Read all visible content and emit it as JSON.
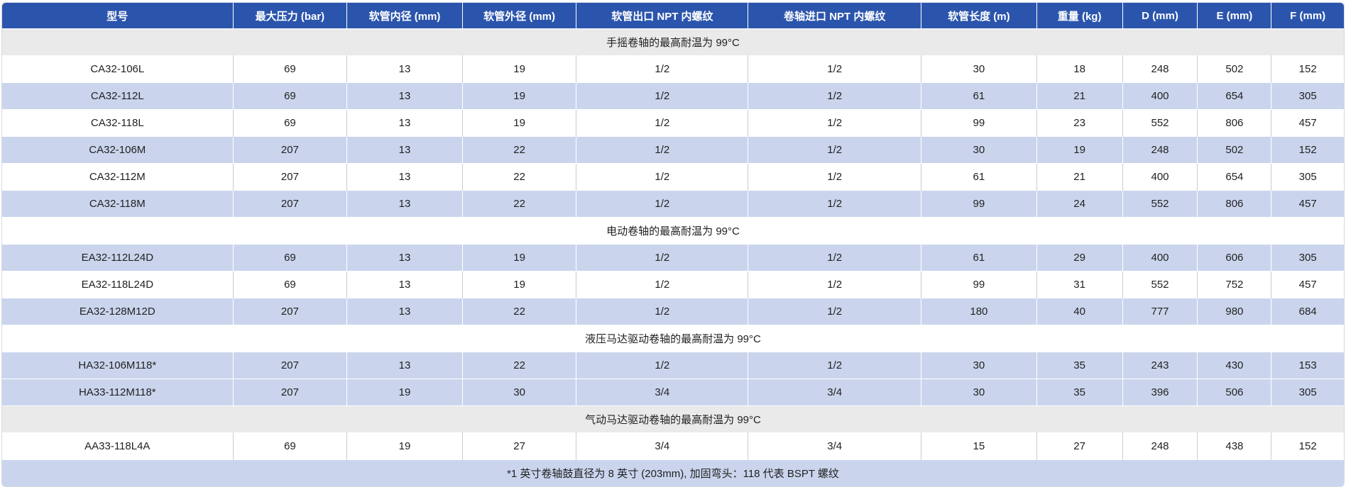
{
  "colors": {
    "header_bg": "#2b55ad",
    "header_text": "#ffffff",
    "stripe_blue": "#cad5ed",
    "section_gray": "#eaeaea",
    "row_white": "#ffffff",
    "body_text": "#222222"
  },
  "table": {
    "headers": [
      "型号",
      "最大压力 (bar)",
      "软管内径 (mm)",
      "软管外径 (mm)",
      "软管出口 NPT 内螺纹",
      "卷轴进口 NPT 内螺纹",
      "软管长度 (m)",
      "重量 (kg)",
      "D (mm)",
      "E (mm)",
      "F (mm)"
    ],
    "sections": [
      {
        "title": "手摇卷轴的最高耐温为 99°C",
        "shade": "gray",
        "rows": [
          {
            "shade": "white",
            "cells": [
              "CA32-106L",
              "69",
              "13",
              "19",
              "1/2",
              "1/2",
              "30",
              "18",
              "248",
              "502",
              "152"
            ]
          },
          {
            "shade": "blue",
            "cells": [
              "CA32-112L",
              "69",
              "13",
              "19",
              "1/2",
              "1/2",
              "61",
              "21",
              "400",
              "654",
              "305"
            ]
          },
          {
            "shade": "white",
            "cells": [
              "CA32-118L",
              "69",
              "13",
              "19",
              "1/2",
              "1/2",
              "99",
              "23",
              "552",
              "806",
              "457"
            ]
          },
          {
            "shade": "blue",
            "cells": [
              "CA32-106M",
              "207",
              "13",
              "22",
              "1/2",
              "1/2",
              "30",
              "19",
              "248",
              "502",
              "152"
            ]
          },
          {
            "shade": "white",
            "cells": [
              "CA32-112M",
              "207",
              "13",
              "22",
              "1/2",
              "1/2",
              "61",
              "21",
              "400",
              "654",
              "305"
            ]
          },
          {
            "shade": "blue",
            "cells": [
              "CA32-118M",
              "207",
              "13",
              "22",
              "1/2",
              "1/2",
              "99",
              "24",
              "552",
              "806",
              "457"
            ]
          }
        ]
      },
      {
        "title": "电动卷轴的最高耐温为 99°C",
        "shade": "white",
        "rows": [
          {
            "shade": "blue",
            "cells": [
              "EA32-112L24D",
              "69",
              "13",
              "19",
              "1/2",
              "1/2",
              "61",
              "29",
              "400",
              "606",
              "305"
            ]
          },
          {
            "shade": "white",
            "cells": [
              "EA32-118L24D",
              "69",
              "13",
              "19",
              "1/2",
              "1/2",
              "99",
              "31",
              "552",
              "752",
              "457"
            ]
          },
          {
            "shade": "blue",
            "cells": [
              "EA32-128M12D",
              "207",
              "13",
              "22",
              "1/2",
              "1/2",
              "180",
              "40",
              "777",
              "980",
              "684"
            ]
          }
        ]
      },
      {
        "title": "液压马达驱动卷轴的最高耐温为 99°C",
        "shade": "white",
        "rows": [
          {
            "shade": "blue",
            "cells": [
              "HA32-106M118*",
              "207",
              "13",
              "22",
              "1/2",
              "1/2",
              "30",
              "35",
              "243",
              "430",
              "153"
            ]
          },
          {
            "shade": "blue",
            "cells": [
              "HA33-112M118*",
              "207",
              "19",
              "30",
              "3/4",
              "3/4",
              "30",
              "35",
              "396",
              "506",
              "305"
            ]
          }
        ]
      },
      {
        "title": "气动马达驱动卷轴的最高耐温为 99°C",
        "shade": "gray",
        "rows": [
          {
            "shade": "white",
            "cells": [
              "AA33-118L4A",
              "69",
              "19",
              "27",
              "3/4",
              "3/4",
              "15",
              "27",
              "248",
              "438",
              "152"
            ]
          }
        ]
      }
    ],
    "footnote": "*1 英寸卷轴鼓直径为 8 英寸 (203mm), 加固弯头：118 代表 BSPT 螺纹"
  }
}
